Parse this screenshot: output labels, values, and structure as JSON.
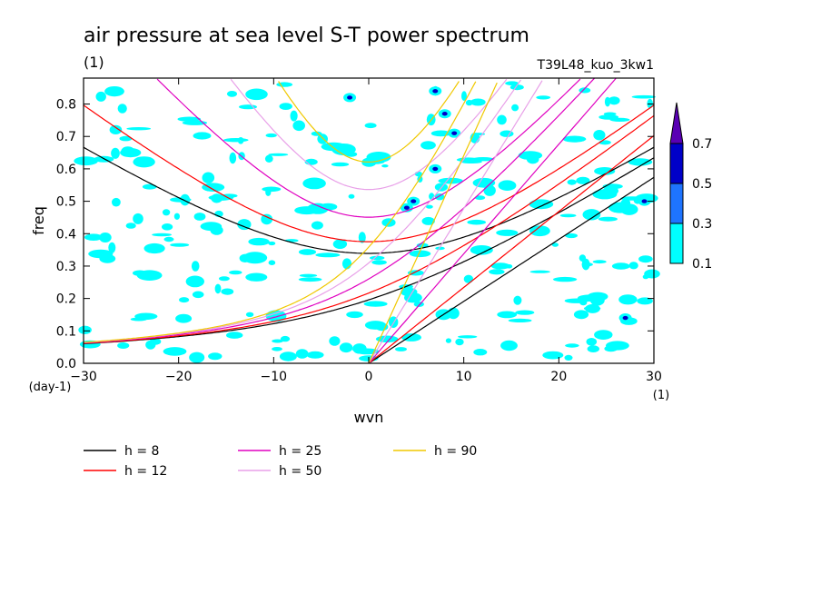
{
  "chart_data": {
    "type": "contour",
    "title": "air pressure at sea level S-T power spectrum",
    "title_unit": "(1)",
    "run_label": "T39L48_kuo_3kw1",
    "xlabel": "wvn",
    "xunit": "(1)",
    "ylabel": "freq",
    "yunit": "(day-1)",
    "xlim": [
      -30,
      30
    ],
    "ylim": [
      0,
      0.88
    ],
    "xticks": [
      -30,
      -20,
      -10,
      0,
      10,
      20,
      30
    ],
    "xtick_labels": [
      "−30",
      "−20",
      "−10",
      "0",
      "10",
      "20",
      "30"
    ],
    "yticks": [
      0.0,
      0.1,
      0.2,
      0.3,
      0.4,
      0.5,
      0.6,
      0.7,
      0.8
    ],
    "ytick_labels": [
      "0.0",
      "0.1",
      "0.2",
      "0.3",
      "0.4",
      "0.5",
      "0.6",
      "0.7",
      "0.8"
    ],
    "colorbar": {
      "levels": [
        "0.1",
        "0.3",
        "0.5",
        "0.7"
      ],
      "colors": [
        "#00ffff",
        "#1e74ff",
        "#0000c8",
        "#5a00b4"
      ]
    },
    "dispersion_curves": [
      {
        "name": "h =  8",
        "h": 8,
        "color": "#000000"
      },
      {
        "name": "h = 12",
        "h": 12,
        "color": "#ff0000"
      },
      {
        "name": "h = 25",
        "h": 25,
        "color": "#e000c0"
      },
      {
        "name": "h = 50",
        "h": 50,
        "color": "#e8a0e8"
      },
      {
        "name": "h = 90",
        "h": 90,
        "color": "#f0c800"
      }
    ]
  }
}
